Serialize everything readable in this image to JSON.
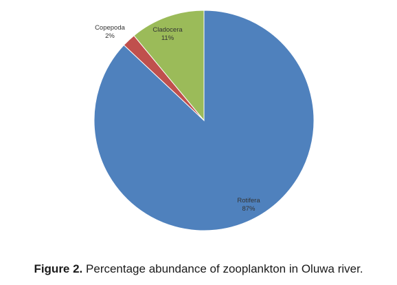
{
  "chart_data": {
    "type": "pie",
    "slices": [
      {
        "label": "Rotifera",
        "value": 87,
        "value_label": "87%",
        "color": "#4f81bd"
      },
      {
        "label": "Copepoda",
        "value": 2,
        "value_label": "2%",
        "color": "#c0504d"
      },
      {
        "label": "Cladocera",
        "value": 11,
        "value_label": "11%",
        "color": "#9bbb59"
      }
    ],
    "start_angle": "12 o'clock",
    "direction": "clockwise",
    "legend": "none",
    "data_labels": true
  },
  "caption": {
    "figure_number": "Figure 2.",
    "text": " Percentage abundance of zooplankton in Oluwa river."
  }
}
